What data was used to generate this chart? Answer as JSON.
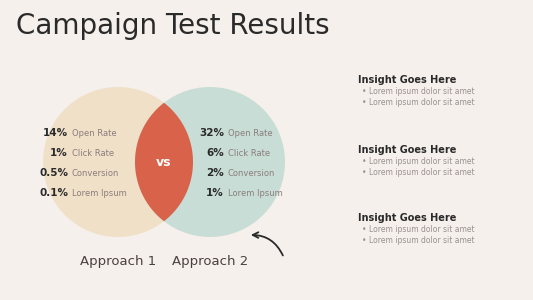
{
  "title": "Campaign Test Results",
  "background_color": "#f5f0eb",
  "circle1_color": "#f0e0c8",
  "circle2_color": "#c8ddd5",
  "overlap_color": "#d9634a",
  "circle1_label": "Approach 1",
  "circle2_label": "Approach 2",
  "vs_text": "vs",
  "vs_color": "#ffffff",
  "approach1_stats": [
    {
      "value": "14%",
      "label": "Open Rate"
    },
    {
      "value": "1%",
      "label": "Click Rate"
    },
    {
      "value": "0.5%",
      "label": "Conversion"
    },
    {
      "value": "0.1%",
      "label": "Lorem Ipsum"
    }
  ],
  "approach2_stats": [
    {
      "value": "32%",
      "label": "Open Rate"
    },
    {
      "value": "6%",
      "label": "Click Rate"
    },
    {
      "value": "2%",
      "label": "Conversion"
    },
    {
      "value": "1%",
      "label": "Lorem Ipsum"
    }
  ],
  "insights": [
    {
      "title": "Insight Goes Here",
      "bullets": [
        "Lorem ipsum dolor sit amet",
        "Lorem ipsum dolor sit amet"
      ]
    },
    {
      "title": "Insight Goes Here",
      "bullets": [
        "Lorem ipsum dolor sit amet",
        "Lorem ipsum dolor sit amet"
      ]
    },
    {
      "title": "Insight Goes Here",
      "bullets": [
        "Lorem ipsum dolor sit amet",
        "Lorem ipsum dolor sit amet"
      ]
    }
  ],
  "title_color": "#2a2a2a",
  "stat_value_color": "#2a2a2a",
  "stat_label_color": "#8a7e7e",
  "insight_title_color": "#2a2a2a",
  "insight_bullet_color": "#9a9090",
  "approach_label_color": "#4a4040",
  "arrow_color": "#2a2a2a"
}
